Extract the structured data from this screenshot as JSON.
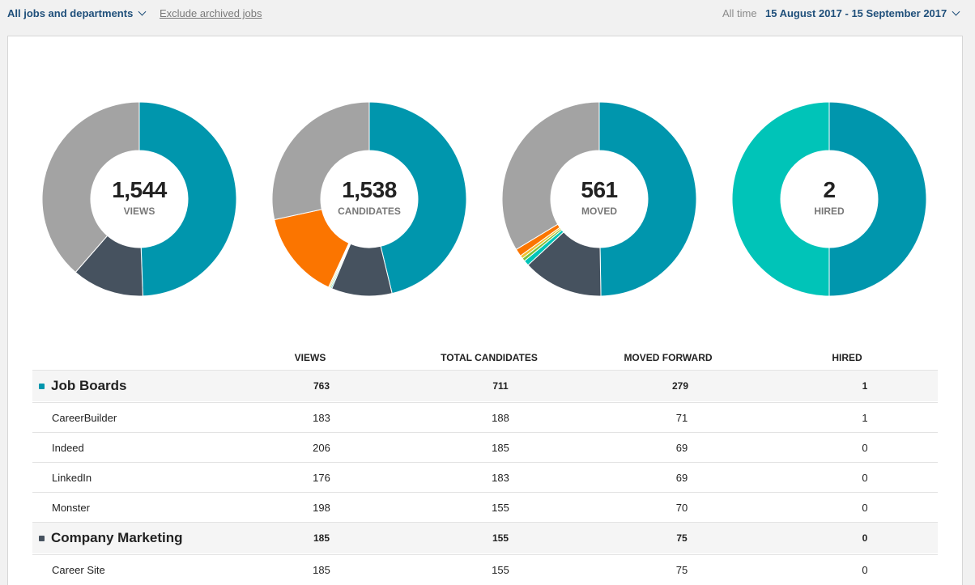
{
  "toolbar": {
    "filter_label": "All jobs and departments",
    "exclude_label": "Exclude archived jobs",
    "period_label": "All time",
    "date_range": "15 August 2017 - 15 September 2017"
  },
  "colors": {
    "job_boards": "#0096ad",
    "company_marketing": "#46525f",
    "grey": "#a3a3a3",
    "orange": "#fb7500",
    "teal_light": "#00c4b8",
    "green": "#7cc13a",
    "yellow": "#f2c12e"
  },
  "chart_data": [
    {
      "type": "pie",
      "donut": true,
      "center_value": "1,544",
      "center_label": "VIEWS",
      "slices": [
        {
          "name": "Job Boards",
          "value": 763,
          "color": "#0096ad"
        },
        {
          "name": "Company Marketing",
          "value": 185,
          "color": "#46525f"
        },
        {
          "value": 596,
          "color": "#a3a3a3"
        }
      ]
    },
    {
      "type": "pie",
      "donut": true,
      "center_value": "1,538",
      "center_label": "CANDIDATES",
      "slices": [
        {
          "name": "Job Boards",
          "value": 711,
          "color": "#0096ad"
        },
        {
          "name": "Company Marketing",
          "value": 155,
          "color": "#46525f"
        },
        {
          "value": 3,
          "color": "#00c4b8"
        },
        {
          "value": 3,
          "color": "#7cc13a"
        },
        {
          "value": 3,
          "color": "#f2c12e"
        },
        {
          "value": 226,
          "color": "#fb7500"
        },
        {
          "value": 437,
          "color": "#a3a3a3"
        }
      ]
    },
    {
      "type": "pie",
      "donut": true,
      "center_value": "561",
      "center_label": "MOVED",
      "slices": [
        {
          "name": "Job Boards",
          "value": 279,
          "color": "#0096ad"
        },
        {
          "name": "Company Marketing",
          "value": 75,
          "color": "#46525f"
        },
        {
          "value": 5,
          "color": "#00c4b8"
        },
        {
          "value": 3,
          "color": "#7cc13a"
        },
        {
          "value": 3,
          "color": "#f2c12e"
        },
        {
          "value": 7,
          "color": "#fb7500"
        },
        {
          "value": 189,
          "color": "#a3a3a3"
        }
      ]
    },
    {
      "type": "pie",
      "donut": true,
      "center_value": "2",
      "center_label": "HIRED",
      "slices": [
        {
          "name": "Job Boards",
          "value": 1,
          "color": "#0096ad"
        },
        {
          "value": 1,
          "color": "#00c4b8"
        }
      ]
    }
  ],
  "table": {
    "headers": [
      "VIEWS",
      "TOTAL CANDIDATES",
      "MOVED FORWARD",
      "HIRED"
    ],
    "rows": [
      {
        "type": "group",
        "name": "Job Boards",
        "color": "#0096ad",
        "values": [
          "763",
          "711",
          "279",
          "1"
        ]
      },
      {
        "type": "sub",
        "name": "CareerBuilder",
        "values": [
          "183",
          "188",
          "71",
          "1"
        ]
      },
      {
        "type": "sub",
        "name": "Indeed",
        "values": [
          "206",
          "185",
          "69",
          "0"
        ]
      },
      {
        "type": "sub",
        "name": "LinkedIn",
        "values": [
          "176",
          "183",
          "69",
          "0"
        ]
      },
      {
        "type": "sub",
        "name": "Monster",
        "values": [
          "198",
          "155",
          "70",
          "0"
        ]
      },
      {
        "type": "group",
        "name": "Company Marketing",
        "color": "#46525f",
        "values": [
          "185",
          "155",
          "75",
          "0"
        ]
      },
      {
        "type": "sub",
        "name": "Career Site",
        "values": [
          "185",
          "155",
          "75",
          "0"
        ]
      }
    ]
  }
}
